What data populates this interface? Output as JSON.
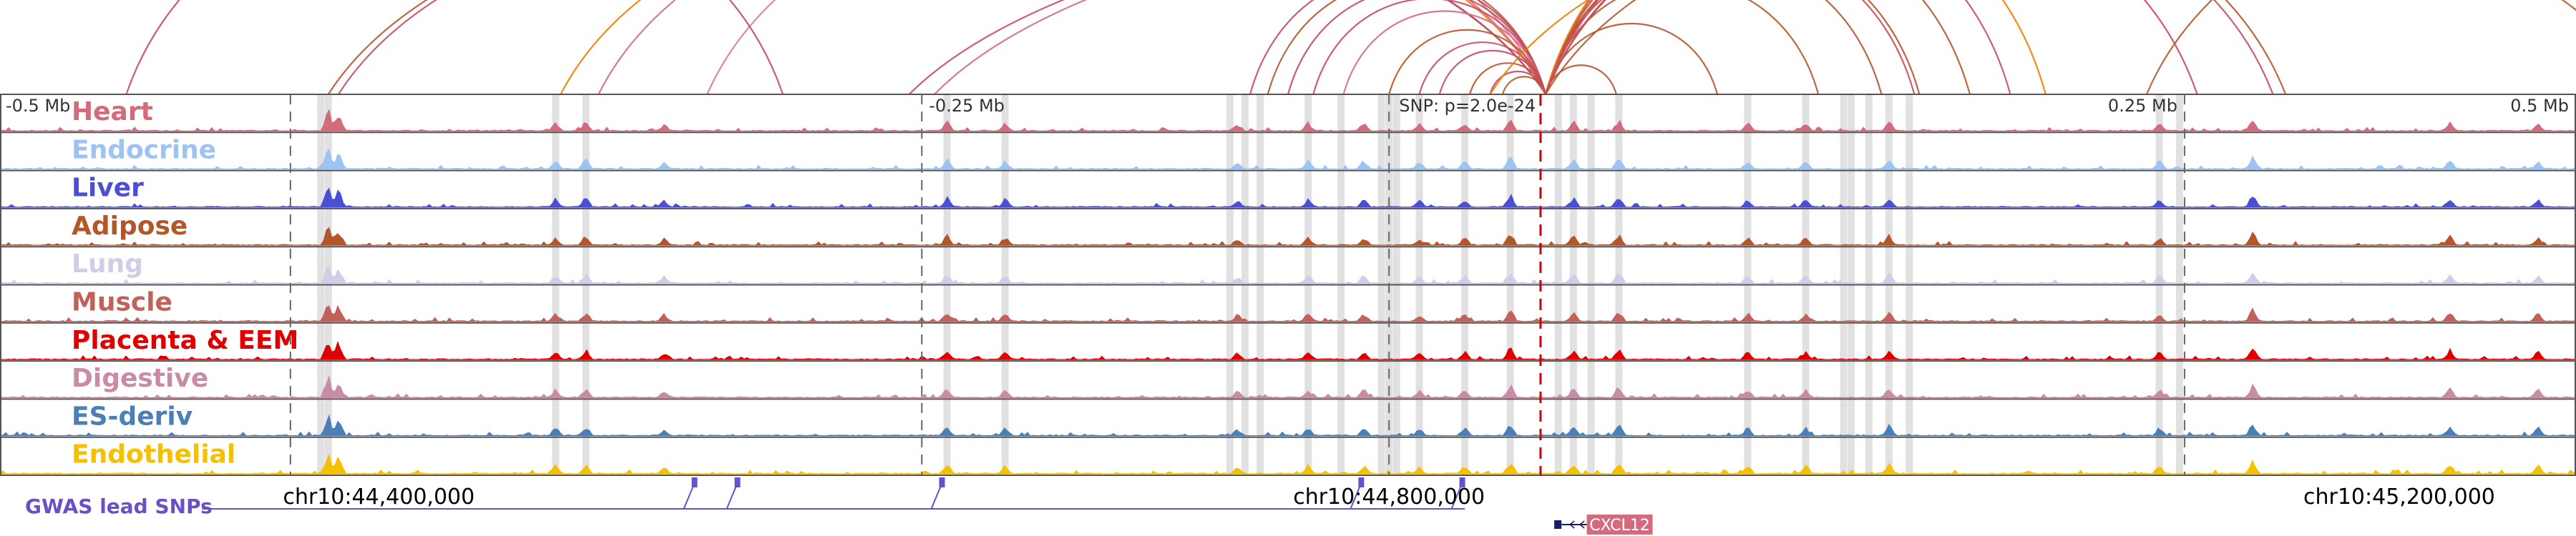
{
  "chart_data": {
    "type": "area",
    "region": {
      "chrom": "chr10",
      "start": 44250000,
      "end": 45270000,
      "center": 44865000
    },
    "relative_ticks": [
      {
        "label": "-0.5 Mb",
        "pos": 44365000
      },
      {
        "label": "-0.25 Mb",
        "pos": 44615000
      },
      {
        "label": "0.25 Mb",
        "pos": 45115000
      },
      {
        "label": "0.5 Mb",
        "pos": 45365000
      }
    ],
    "coordinate_ticks": [
      {
        "label": "chr10:44,400,000",
        "pos": 44400000
      },
      {
        "label": "chr10:44,800,000",
        "pos": 44800000
      },
      {
        "label": "chr10:45,200,000",
        "pos": 45200000
      }
    ],
    "snp": {
      "label": "SNP: p=2.0e-24",
      "pos": 44860000,
      "color": "#cc0000"
    },
    "tracks": [
      {
        "name": "Heart",
        "color": "#d36b7c"
      },
      {
        "name": "Endocrine",
        "color": "#9dc3f2"
      },
      {
        "name": "Liver",
        "color": "#4a4fd6"
      },
      {
        "name": "Adipose",
        "color": "#b5562a"
      },
      {
        "name": "Lung",
        "color": "#d2cce6"
      },
      {
        "name": "Muscle",
        "color": "#c2605a"
      },
      {
        "name": "Placenta & EEM",
        "color": "#e00000"
      },
      {
        "name": "Digestive",
        "color": "#c98ba5"
      },
      {
        "name": "ES-deriv",
        "color": "#4a7fb8"
      },
      {
        "name": "Endothelial",
        "color": "#f5c000"
      }
    ],
    "highlight_regions": [
      44377000,
      44380000,
      44470000,
      44482000,
      44625000,
      44648000,
      44737000,
      44743000,
      44749000,
      44768000,
      44781000,
      44797000,
      44800000,
      44803000,
      44812000,
      44830000,
      44848000,
      44867000,
      44873000,
      44880000,
      44891000,
      44942000,
      44965000,
      44980000,
      44983000,
      44990000,
      44998000,
      45006000,
      45105000,
      45113000
    ],
    "gwas_lead_snps": {
      "label": "GWAS lead SNPs",
      "color": "#6a4fc9",
      "positions": [
        44525000,
        44542000,
        44623000,
        44789000,
        44829000
      ]
    },
    "gene": {
      "name": "CXCL12",
      "start": 44866000,
      "end": 44880000,
      "strand": "-",
      "color": "#d36b7c"
    },
    "loops": [
      {
        "a": 44380000,
        "b": 44862000,
        "color": "#b5562a"
      },
      {
        "a": 44384000,
        "b": 44862000,
        "color": "#c94a6a"
      },
      {
        "a": 44472000,
        "b": 44862000,
        "color": "#ef7f00"
      },
      {
        "a": 44487000,
        "b": 44862000,
        "color": "#d56b8a"
      },
      {
        "a": 44530000,
        "b": 44862000,
        "color": "#e07a8a"
      },
      {
        "a": 44745000,
        "b": 44862000,
        "color": "#c94a6a"
      },
      {
        "a": 44752000,
        "b": 44862000,
        "color": "#b5562a"
      },
      {
        "a": 44760000,
        "b": 44862000,
        "color": "#c94a6a"
      },
      {
        "a": 44770000,
        "b": 44862000,
        "color": "#c94a6a"
      },
      {
        "a": 44782000,
        "b": 44862000,
        "color": "#d56b8a"
      },
      {
        "a": 44800000,
        "b": 44862000,
        "color": "#b5562a"
      },
      {
        "a": 44812000,
        "b": 44862000,
        "color": "#c94a6a"
      },
      {
        "a": 44820000,
        "b": 44862000,
        "color": "#c94a6a"
      },
      {
        "a": 44832000,
        "b": 44862000,
        "color": "#b5562a"
      },
      {
        "a": 44840000,
        "b": 44862000,
        "color": "#c94a6a"
      },
      {
        "a": 44845000,
        "b": 44862000,
        "color": "#b5562a"
      },
      {
        "a": 44862000,
        "b": 44890000,
        "color": "#b5562a"
      },
      {
        "a": 44862000,
        "b": 44930000,
        "color": "#b5562a"
      },
      {
        "a": 44862000,
        "b": 44970000,
        "color": "#b5562a"
      },
      {
        "a": 44862000,
        "b": 44995000,
        "color": "#b5562a"
      },
      {
        "a": 44862000,
        "b": 45008000,
        "color": "#c94a6a"
      },
      {
        "a": 44862000,
        "b": 45010000,
        "color": "#b5562a"
      },
      {
        "a": 44862000,
        "b": 45030000,
        "color": "#b5562a"
      },
      {
        "a": 44862000,
        "b": 45046000,
        "color": "#c94a6a"
      },
      {
        "a": 44862000,
        "b": 45060000,
        "color": "#ef7f00"
      },
      {
        "a": 44862000,
        "b": 45120000,
        "color": "#c94a6a"
      },
      {
        "a": 44862000,
        "b": 45155000,
        "color": "#b5562a"
      },
      {
        "a": 44862000,
        "b": 45150000,
        "color": "#c94a6a"
      },
      {
        "a": 44862000,
        "b": 45300000,
        "color": "#b5562a"
      },
      {
        "a": 44840000,
        "b": 45320000,
        "color": "#ef7f00"
      },
      {
        "a": 44620000,
        "b": 45360000,
        "color": "#d56b8a"
      },
      {
        "a": 44610000,
        "b": 45365000,
        "color": "#c94a6a"
      },
      {
        "a": 45100000,
        "b": 45420000,
        "color": "#b5562a"
      },
      {
        "a": 44300000,
        "b": 44560000,
        "color": "#c94a6a"
      }
    ],
    "signal_peaks": [
      {
        "pos": 44380000,
        "h": 0.75
      },
      {
        "pos": 44384000,
        "h": 0.6
      },
      {
        "pos": 44470000,
        "h": 0.3
      },
      {
        "pos": 44482000,
        "h": 0.35
      },
      {
        "pos": 44513000,
        "h": 0.25
      },
      {
        "pos": 44625000,
        "h": 0.35
      },
      {
        "pos": 44648000,
        "h": 0.3
      },
      {
        "pos": 44740000,
        "h": 0.25
      },
      {
        "pos": 44768000,
        "h": 0.3
      },
      {
        "pos": 44790000,
        "h": 0.3
      },
      {
        "pos": 44812000,
        "h": 0.25
      },
      {
        "pos": 44830000,
        "h": 0.3
      },
      {
        "pos": 44848000,
        "h": 0.45
      },
      {
        "pos": 44873000,
        "h": 0.35
      },
      {
        "pos": 44891000,
        "h": 0.4
      },
      {
        "pos": 44942000,
        "h": 0.3
      },
      {
        "pos": 44965000,
        "h": 0.3
      },
      {
        "pos": 44998000,
        "h": 0.35
      },
      {
        "pos": 45105000,
        "h": 0.3
      },
      {
        "pos": 45142000,
        "h": 0.45
      },
      {
        "pos": 45220000,
        "h": 0.35
      },
      {
        "pos": 45255000,
        "h": 0.3
      }
    ]
  }
}
